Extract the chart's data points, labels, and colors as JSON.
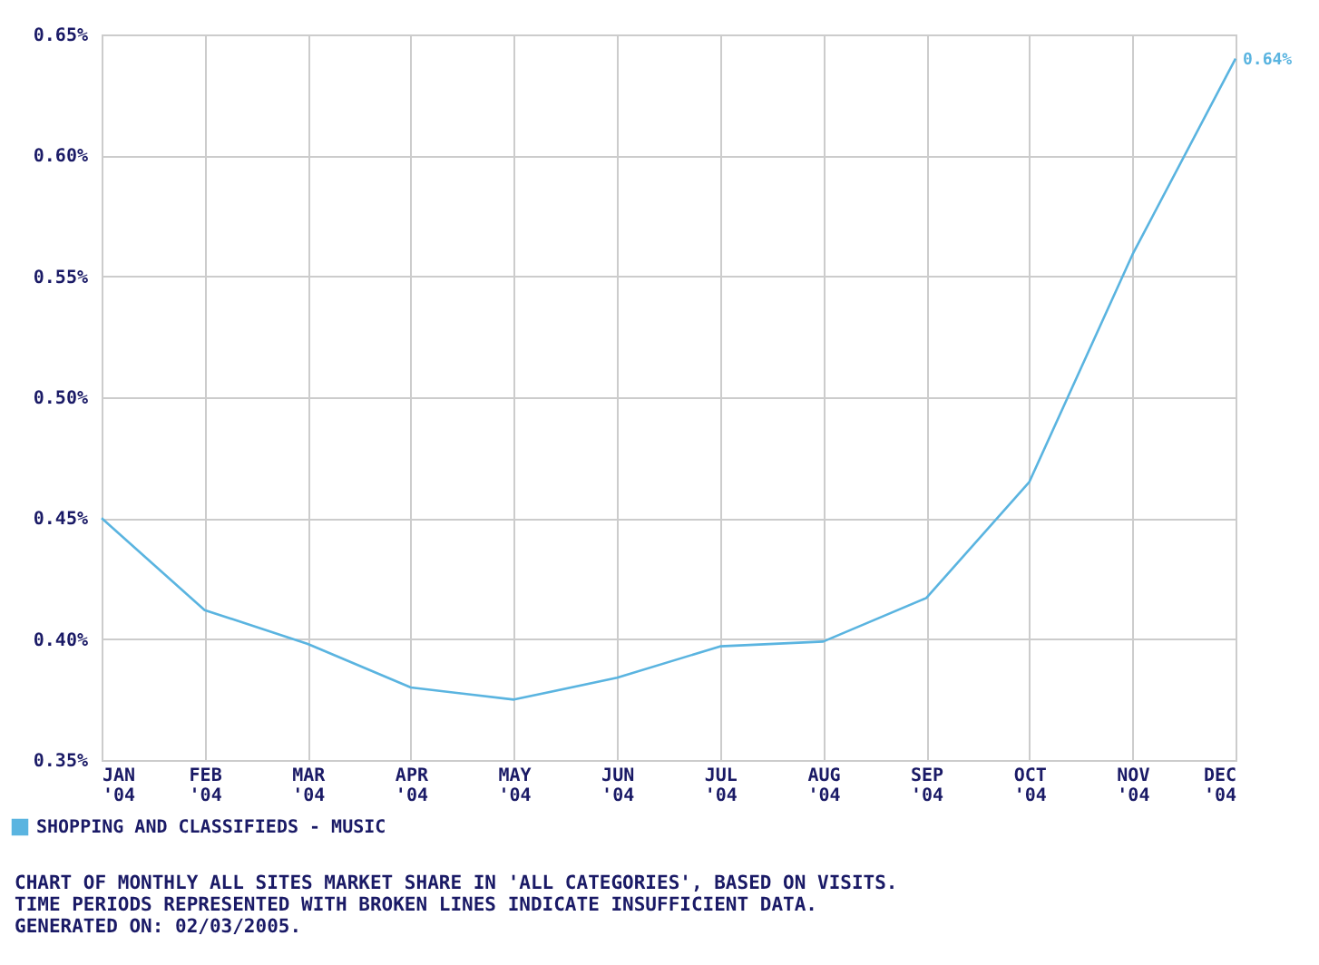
{
  "chart_data": {
    "type": "line",
    "categories": [
      "JAN '04",
      "FEB '04",
      "MAR '04",
      "APR '04",
      "MAY '04",
      "JUN '04",
      "JUL '04",
      "AUG '04",
      "SEP '04",
      "OCT '04",
      "NOV '04",
      "DEC '04"
    ],
    "series": [
      {
        "name": "SHOPPING AND CLASSIFIEDS - MUSIC",
        "color": "#5ab4e0",
        "values": [
          0.45,
          0.412,
          0.398,
          0.38,
          0.375,
          0.384,
          0.397,
          0.399,
          0.417,
          0.465,
          0.559,
          0.64
        ],
        "value_labels": [
          null,
          null,
          null,
          null,
          null,
          null,
          null,
          null,
          null,
          null,
          null,
          "0.64%"
        ]
      }
    ],
    "ylim": [
      0.35,
      0.65
    ],
    "yticks": [
      {
        "value": 0.35,
        "label": "0.35%"
      },
      {
        "value": 0.4,
        "label": "0.40%"
      },
      {
        "value": 0.45,
        "label": "0.45%"
      },
      {
        "value": 0.5,
        "label": "0.50%"
      },
      {
        "value": 0.55,
        "label": "0.55%"
      },
      {
        "value": 0.6,
        "label": "0.60%"
      },
      {
        "value": 0.65,
        "label": "0.65%"
      }
    ],
    "grid": true,
    "legend": "bottom left",
    "marker": "none",
    "line_style": "solid",
    "annotations": [
      "CHART OF MONTHLY ALL SITES MARKET SHARE IN 'ALL CATEGORIES', BASED ON VISITS.",
      "TIME PERIODS REPRESENTED WITH BROKEN LINES INDICATE INSUFFICIENT DATA.",
      "GENERATED ON: 02/03/2005."
    ]
  }
}
